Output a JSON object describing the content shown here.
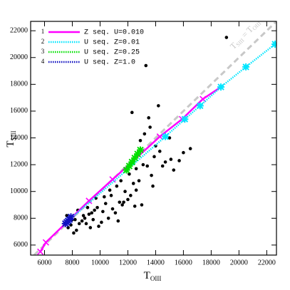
{
  "chart_data": {
    "type": "scatter",
    "xlabel": {
      "main": "T",
      "sub": "OIII"
    },
    "ylabel": {
      "main": "T",
      "sub": "SIII"
    },
    "xlim": [
      5000,
      22700
    ],
    "ylim": [
      5250,
      22700
    ],
    "xticks": [
      6000,
      8000,
      10000,
      12000,
      14000,
      16000,
      18000,
      20000,
      22000
    ],
    "yticks": [
      6000,
      8000,
      10000,
      12000,
      14000,
      16000,
      18000,
      20000,
      22000
    ],
    "identity_label": {
      "main": "T",
      "sub": "SIII",
      "mid": " = T",
      "sub2": "OIII"
    },
    "identity_color": "#c8c8c8",
    "points": {
      "color": "#000000",
      "x": [
        19100,
        13300,
        14200,
        12300,
        13500,
        13600,
        13200,
        12900,
        14000,
        14300,
        15100,
        14700,
        15700,
        16500,
        13900,
        13100,
        12600,
        12100,
        11500,
        11200,
        11800,
        12400,
        12800,
        13400,
        12200,
        11400,
        10800,
        10300,
        10900,
        11700,
        12600,
        13000,
        10200,
        9800,
        9400,
        9200,
        8800,
        9500,
        10100,
        10600,
        9900,
        9300,
        8900,
        8500,
        8200,
        8000,
        7900,
        7700,
        8300,
        8700,
        9100,
        9600,
        10400,
        11100,
        11600,
        12000,
        13700,
        14500,
        15300,
        16000,
        8100,
        8400,
        9000,
        9700,
        10700,
        11300,
        12500,
        13800,
        15000,
        7600
      ],
      "y": [
        21500,
        19400,
        16400,
        15900,
        15500,
        14800,
        14300,
        13800,
        13400,
        13000,
        12400,
        12200,
        12300,
        13200,
        12600,
        12000,
        11700,
        11300,
        10800,
        10400,
        10000,
        10600,
        10800,
        11900,
        9700,
        9200,
        9700,
        9600,
        8700,
        9200,
        10100,
        9000,
        8500,
        8800,
        8400,
        8300,
        8200,
        7900,
        7700,
        8000,
        7400,
        7300,
        8000,
        7600,
        7900,
        7900,
        7500,
        7300,
        7100,
        7800,
        8800,
        8600,
        9100,
        8400,
        9000,
        9400,
        11200,
        11900,
        11600,
        12900,
        6900,
        8600,
        7600,
        9500,
        10100,
        7800,
        8900,
        10400,
        14000,
        8200
      ]
    },
    "series": [
      {
        "name": "Z seq. U=0.010",
        "number": "1",
        "color": "#ff00ff",
        "marker": "x",
        "dash": "none",
        "x": [
          5700,
          6100,
          7600,
          9200,
          10900,
          12300,
          14300,
          15900,
          17400,
          18700
        ],
        "y": [
          5500,
          6200,
          7700,
          9300,
          10900,
          12200,
          14100,
          15400,
          16900,
          17800
        ]
      },
      {
        "name": "U seq. Z=0.01",
        "number": "2",
        "color": "#00e5ff",
        "marker": "star",
        "dash": "1.5 1.5",
        "x": [
          7700,
          14700,
          16100,
          17200,
          18700,
          20500,
          22600
        ],
        "y": [
          7800,
          14100,
          15400,
          16400,
          17800,
          19300,
          21000
        ]
      },
      {
        "name": "U seq. Z=0.25",
        "number": "3",
        "color": "#00e000",
        "marker": "star",
        "dash": "1.5 1.5",
        "x": [
          11900,
          12100,
          12300,
          12500,
          12700,
          12900
        ],
        "y": [
          11600,
          11900,
          12200,
          12500,
          12800,
          13100
        ]
      },
      {
        "name": "U seq. Z=1.0",
        "number": "4",
        "color": "#1010c0",
        "marker": "star",
        "dash": "1.5 1.5",
        "x": [
          7500,
          7600,
          7700,
          7800,
          7900
        ],
        "y": [
          7600,
          7700,
          7800,
          7900,
          8100
        ]
      }
    ]
  }
}
